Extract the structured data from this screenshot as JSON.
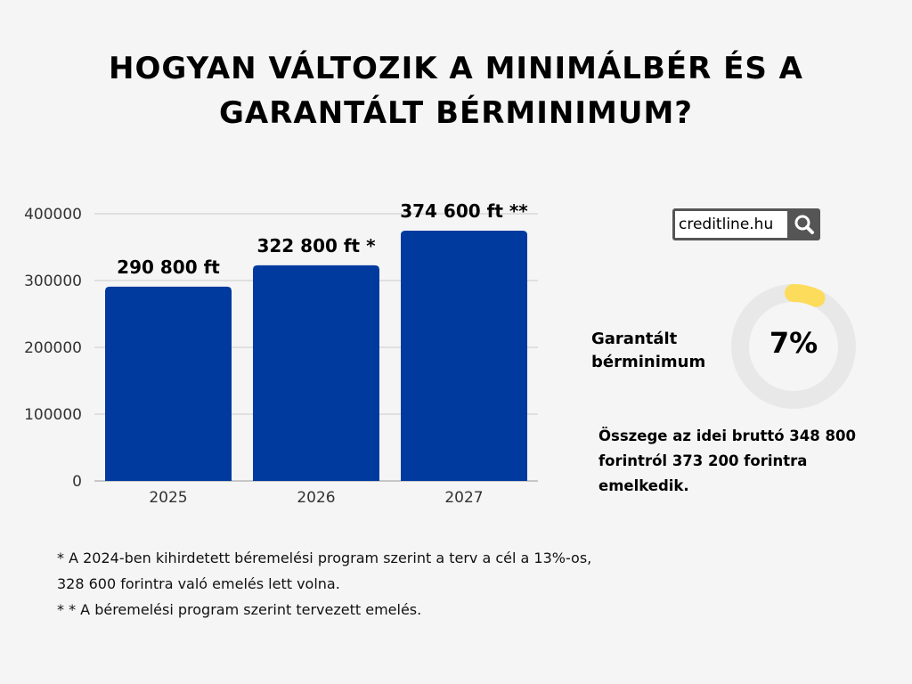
{
  "title_line1": "Hogyan változik a minimálbér és a",
  "title_line2": "garantált bérminimum?",
  "chart_data": {
    "type": "bar",
    "categories": [
      "2025",
      "2026",
      "2027"
    ],
    "values": [
      290800,
      322800,
      374600
    ],
    "data_labels": [
      "290 800 ft",
      "322 800 ft *",
      "374 600 ft **"
    ],
    "yticks": [
      "0",
      "100000",
      "200000",
      "300000",
      "400000"
    ],
    "ylim": [
      0,
      400000
    ],
    "xlabel": "",
    "ylabel": "",
    "title": "",
    "grid": true,
    "color": "#003a9f"
  },
  "search": {
    "value": "creditline.hu",
    "icon": "search-icon"
  },
  "gauge": {
    "label_line1": "Garantált",
    "label_line2": "bérminimum",
    "value_text": "7%",
    "percent": 7,
    "track_color": "#e8e8e8",
    "accent_color": "#fcdc5a"
  },
  "description": [
    "Összege az idei bruttó 348 800",
    "forintról 373 200 forintra",
    "emelkedik."
  ],
  "notes": [
    "* A 2024-ben kihirdetett béremelési program szerint a terv a cél a 13%-os,",
    "328 600 forintra való emelés lett volna.",
    "* * A béremelési program szerint tervezett emelés."
  ]
}
